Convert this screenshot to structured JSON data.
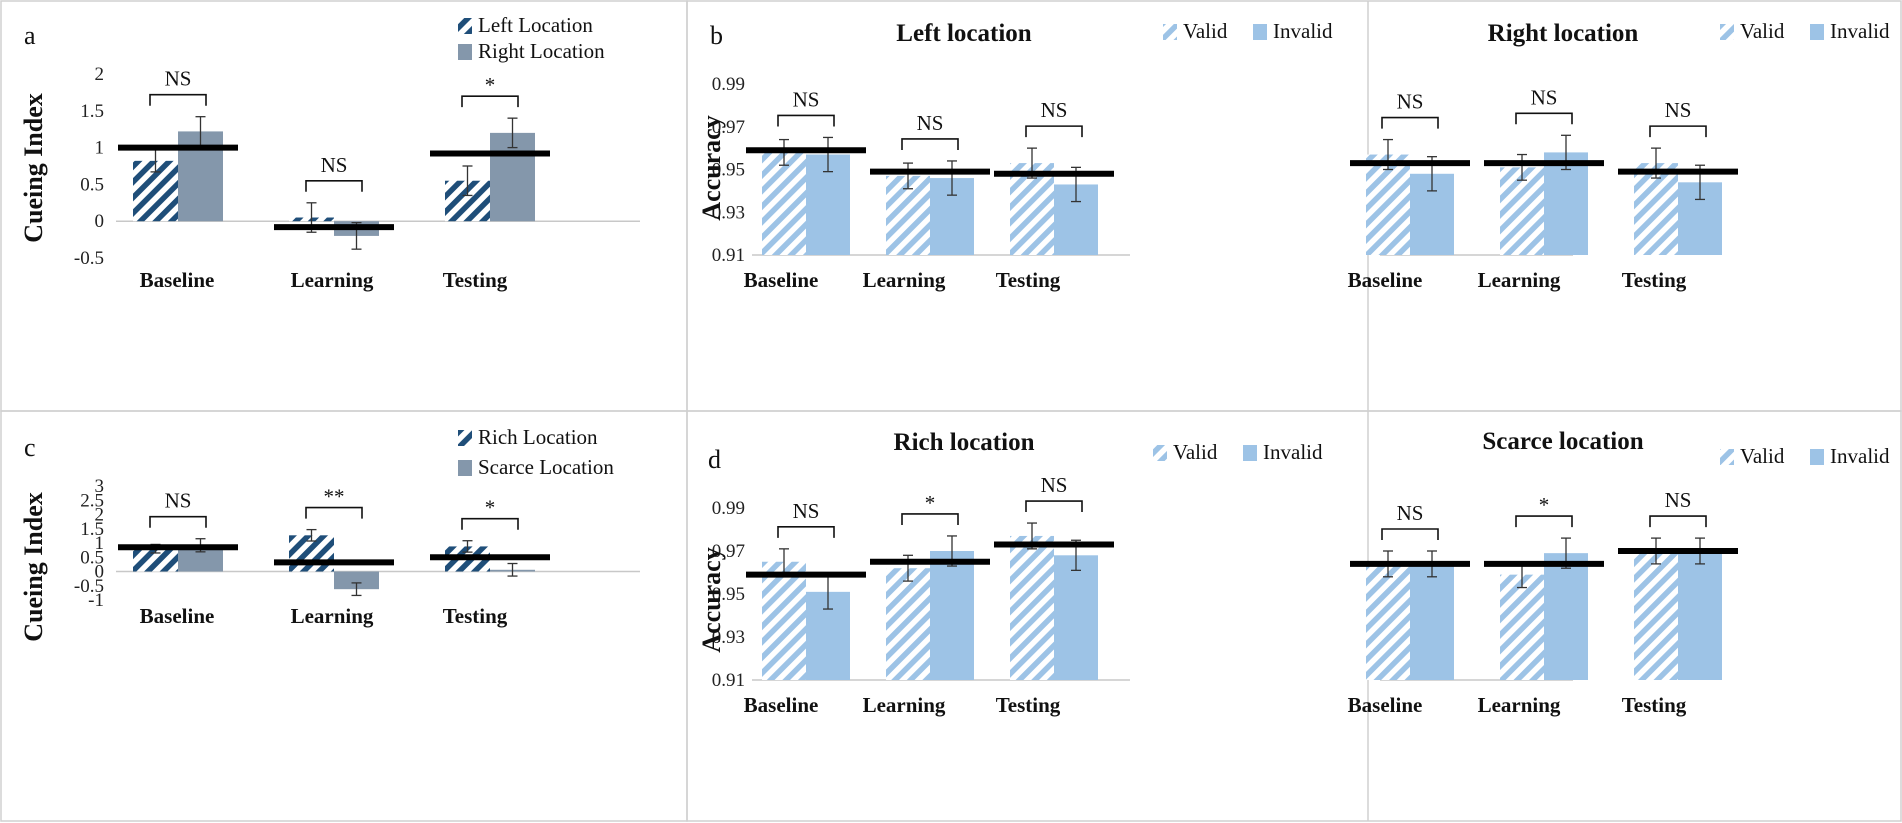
{
  "panel_labels": [
    "a",
    "b",
    "c",
    "d"
  ],
  "chart_data": [
    {
      "id": "a",
      "type": "bar",
      "ylabel": "Cueing Index",
      "categories": [
        "Baseline",
        "Learning",
        "Testing"
      ],
      "ylim": [
        -0.5,
        2
      ],
      "ticks": [
        -0.5,
        0,
        0.5,
        1,
        1.5,
        2
      ],
      "tick_labels": [
        "-0.5",
        "0",
        "0.5",
        "1",
        "1.5",
        "2"
      ],
      "colors": [
        "#1f4e79",
        "#8497ab"
      ],
      "series": [
        {
          "name": "Left Location",
          "pattern": "hatch",
          "values": [
            0.82,
            0.05,
            0.55
          ],
          "errors": [
            0.15,
            0.2,
            0.2
          ]
        },
        {
          "name": "Right Location",
          "pattern": "solid",
          "values": [
            1.22,
            -0.2,
            1.2
          ],
          "errors": [
            0.2,
            0.18,
            0.2
          ]
        }
      ],
      "means": [
        1.0,
        -0.08,
        0.92
      ],
      "significance": [
        "NS",
        "NS",
        "*"
      ]
    },
    {
      "id": "b1",
      "type": "bar",
      "title": "Left location",
      "ylabel": "Accuracy",
      "categories": [
        "Baseline",
        "Learning",
        "Testing"
      ],
      "ylim": [
        0.91,
        0.99
      ],
      "ticks": [
        0.91,
        0.93,
        0.95,
        0.97,
        0.99
      ],
      "tick_labels": [
        "0.91",
        "0.93",
        "0.95",
        "0.97",
        "0.99"
      ],
      "colors": [
        "#9dc3e6",
        "#9dc3e6"
      ],
      "series": [
        {
          "name": "Valid",
          "pattern": "hatch",
          "values": [
            0.958,
            0.947,
            0.953
          ],
          "errors": [
            0.006,
            0.006,
            0.007
          ]
        },
        {
          "name": "Invalid",
          "pattern": "solid",
          "values": [
            0.957,
            0.946,
            0.943
          ],
          "errors": [
            0.008,
            0.008,
            0.008
          ]
        }
      ],
      "means": [
        0.959,
        0.949,
        0.948
      ],
      "significance": [
        "NS",
        "NS",
        "NS"
      ]
    },
    {
      "id": "b2",
      "type": "bar",
      "title": "Right location",
      "ylabel": "",
      "categories": [
        "Baseline",
        "Learning",
        "Testing"
      ],
      "ylim": [
        0.91,
        0.99
      ],
      "ticks": [
        0.91,
        0.93,
        0.95,
        0.97,
        0.99
      ],
      "tick_labels": [],
      "colors": [
        "#9dc3e6",
        "#9dc3e6"
      ],
      "series": [
        {
          "name": "Valid",
          "pattern": "hatch",
          "values": [
            0.957,
            0.951,
            0.953
          ],
          "errors": [
            0.007,
            0.006,
            0.007
          ]
        },
        {
          "name": "Invalid",
          "pattern": "solid",
          "values": [
            0.948,
            0.958,
            0.944
          ],
          "errors": [
            0.008,
            0.008,
            0.008
          ]
        }
      ],
      "means": [
        0.953,
        0.953,
        0.949
      ],
      "significance": [
        "NS",
        "NS",
        "NS"
      ]
    },
    {
      "id": "c",
      "type": "bar",
      "ylabel": "Cueing Index",
      "categories": [
        "Baseline",
        "Learning",
        "Testing"
      ],
      "ylim": [
        -1,
        3
      ],
      "ticks": [
        -1,
        -0.5,
        0,
        0.5,
        1,
        1.5,
        2,
        2.5,
        3
      ],
      "tick_labels": [
        "-1",
        "-0.5",
        "0",
        "0.5",
        "1",
        "1.5",
        "2",
        "2.5",
        "3"
      ],
      "colors": [
        "#1f4e79",
        "#8497ab"
      ],
      "series": [
        {
          "name": "Rich Location",
          "pattern": "hatch",
          "values": [
            0.8,
            1.27,
            0.88
          ],
          "errors": [
            0.15,
            0.2,
            0.2
          ]
        },
        {
          "name": "Scarce Location",
          "pattern": "solid",
          "values": [
            0.92,
            -0.62,
            0.06
          ],
          "errors": [
            0.23,
            0.22,
            0.22
          ]
        }
      ],
      "means": [
        0.85,
        0.32,
        0.5
      ],
      "significance": [
        "NS",
        "**",
        "*"
      ]
    },
    {
      "id": "d1",
      "type": "bar",
      "title": "Rich location",
      "ylabel": "Accuracy",
      "categories": [
        "Baseline",
        "Learning",
        "Testing"
      ],
      "ylim": [
        0.91,
        0.99
      ],
      "ticks": [
        0.91,
        0.93,
        0.95,
        0.97,
        0.99
      ],
      "tick_labels": [
        "0.91",
        "0.93",
        "0.95",
        "0.97",
        "0.99"
      ],
      "colors": [
        "#9dc3e6",
        "#9dc3e6"
      ],
      "series": [
        {
          "name": "Valid",
          "pattern": "hatch",
          "values": [
            0.965,
            0.962,
            0.977
          ],
          "errors": [
            0.006,
            0.006,
            0.006
          ]
        },
        {
          "name": "Invalid",
          "pattern": "solid",
          "values": [
            0.951,
            0.97,
            0.968
          ],
          "errors": [
            0.008,
            0.007,
            0.007
          ]
        }
      ],
      "means": [
        0.959,
        0.965,
        0.973
      ],
      "significance": [
        "NS",
        "*",
        "NS"
      ]
    },
    {
      "id": "d2",
      "type": "bar",
      "title": "Scarce location",
      "ylabel": "",
      "categories": [
        "Baseline",
        "Learning",
        "Testing"
      ],
      "ylim": [
        0.91,
        0.99
      ],
      "ticks": [
        0.91,
        0.93,
        0.95,
        0.97,
        0.99
      ],
      "tick_labels": [],
      "colors": [
        "#9dc3e6",
        "#9dc3e6"
      ],
      "series": [
        {
          "name": "Valid",
          "pattern": "hatch",
          "values": [
            0.964,
            0.959,
            0.97
          ],
          "errors": [
            0.006,
            0.006,
            0.006
          ]
        },
        {
          "name": "Invalid",
          "pattern": "solid",
          "values": [
            0.964,
            0.969,
            0.97
          ],
          "errors": [
            0.006,
            0.007,
            0.006
          ]
        }
      ],
      "means": [
        0.964,
        0.964,
        0.97
      ],
      "significance": [
        "NS",
        "*",
        "NS"
      ]
    }
  ]
}
